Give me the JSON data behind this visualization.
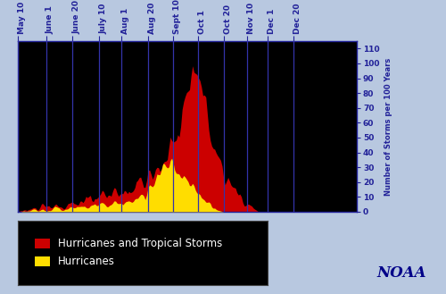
{
  "ylabel": "Number of Storms per 100 Years",
  "background_color": "#000000",
  "outer_background": "#b8c8e0",
  "tick_labels": [
    "May 10",
    "June 1",
    "June 20",
    "July 10",
    "Aug 1",
    "Aug 20",
    "Sept 10",
    "Oct 1",
    "Oct 20",
    "Nov 10",
    "Dec 1",
    "Dec 20"
  ],
  "yticks": [
    0,
    10,
    20,
    30,
    40,
    50,
    60,
    70,
    80,
    90,
    100,
    110
  ],
  "ylim": [
    0,
    115
  ],
  "red_color": "#cc0000",
  "yellow_color": "#ffdd00",
  "legend_bg": "#000000",
  "legend_text_color": "#ffffff",
  "noaa_text_color": "#000088",
  "grid_color": "#3333aa",
  "n_points": 230,
  "x_tick_positions": [
    0,
    19,
    37,
    55,
    70,
    88,
    105,
    122,
    139,
    155,
    169,
    186
  ],
  "red_data": [
    0,
    0,
    1,
    1,
    2,
    1,
    1,
    2,
    1,
    2,
    3,
    2,
    2,
    1,
    2,
    3,
    3,
    4,
    3,
    2,
    2,
    3,
    4,
    3,
    4,
    5,
    4,
    5,
    4,
    3,
    4,
    5,
    6,
    5,
    4,
    5,
    6,
    7,
    6,
    5,
    6,
    7,
    8,
    7,
    6,
    7,
    8,
    9,
    8,
    9,
    8,
    9,
    10,
    11,
    10,
    9,
    10,
    11,
    10,
    9,
    10,
    11,
    12,
    11,
    12,
    13,
    14,
    13,
    12,
    11,
    12,
    13,
    14,
    15,
    14,
    13,
    14,
    15,
    16,
    17,
    18,
    19,
    20,
    21,
    20,
    19,
    21,
    22,
    23,
    24,
    25,
    26,
    27,
    28,
    29,
    30,
    31,
    32,
    33,
    34,
    36,
    38,
    40,
    42,
    44,
    46,
    49,
    52,
    55,
    58,
    62,
    66,
    70,
    75,
    80,
    85,
    90,
    93,
    95,
    96,
    97,
    95,
    92,
    88,
    84,
    80,
    75,
    70,
    65,
    60,
    55,
    50,
    46,
    42,
    38,
    35,
    32,
    29,
    27,
    25,
    23,
    21,
    19,
    18,
    17,
    16,
    15,
    14,
    13,
    12,
    11,
    10,
    9,
    8,
    7,
    6,
    5,
    4,
    3,
    2,
    1,
    1,
    0,
    0,
    0,
    0,
    0,
    0,
    0,
    0,
    0,
    0,
    0,
    0,
    0,
    0,
    0,
    0,
    0,
    0,
    0,
    0,
    0,
    0,
    0,
    0,
    0,
    0,
    0,
    0,
    0,
    0,
    0,
    0,
    0,
    0,
    0,
    0,
    0,
    0,
    0,
    0,
    0,
    0,
    0,
    0,
    0,
    0,
    0,
    0,
    0,
    0,
    0,
    0,
    0,
    0,
    0,
    0,
    0,
    0,
    0,
    0,
    0,
    0,
    0,
    0,
    0,
    0,
    0,
    0
  ],
  "yellow_data": [
    0,
    0,
    0,
    0,
    1,
    0,
    0,
    1,
    0,
    1,
    1,
    1,
    1,
    0,
    1,
    1,
    1,
    2,
    1,
    1,
    1,
    2,
    2,
    1,
    2,
    2,
    2,
    2,
    2,
    1,
    2,
    2,
    3,
    2,
    2,
    2,
    3,
    3,
    3,
    2,
    3,
    3,
    4,
    3,
    3,
    3,
    4,
    4,
    4,
    4,
    4,
    4,
    5,
    5,
    5,
    4,
    5,
    5,
    5,
    4,
    5,
    5,
    6,
    5,
    6,
    6,
    7,
    6,
    6,
    5,
    6,
    6,
    7,
    7,
    7,
    6,
    7,
    7,
    8,
    8,
    9,
    10,
    11,
    12,
    12,
    12,
    13,
    14,
    15,
    16,
    18,
    20,
    22,
    24,
    26,
    28,
    30,
    32,
    33,
    34,
    35,
    34,
    33,
    32,
    31,
    30,
    28,
    27,
    26,
    25,
    24,
    23,
    22,
    21,
    20,
    19,
    18,
    17,
    16,
    15,
    14,
    13,
    12,
    11,
    10,
    9,
    8,
    7,
    6,
    5,
    4,
    3,
    2,
    2,
    1,
    1,
    1,
    1,
    0,
    0,
    0,
    0,
    0,
    0,
    0,
    0,
    0,
    0,
    0,
    0,
    0,
    0,
    0,
    0,
    0,
    0,
    0,
    0,
    0,
    0,
    0,
    0,
    0,
    0,
    0,
    0,
    0,
    0,
    0,
    0,
    0,
    0,
    0,
    0,
    0,
    0,
    0,
    0,
    0,
    0,
    0,
    0,
    0,
    0,
    0,
    0,
    0,
    0,
    0,
    0,
    0,
    0,
    0,
    0,
    0,
    0,
    0,
    0,
    0,
    0,
    0,
    0,
    0,
    0,
    0,
    0,
    0,
    0,
    0,
    0,
    0,
    0,
    0,
    0,
    0,
    0,
    0,
    0,
    0,
    0,
    0,
    0,
    0,
    0,
    0,
    0,
    0,
    0,
    0,
    0
  ]
}
